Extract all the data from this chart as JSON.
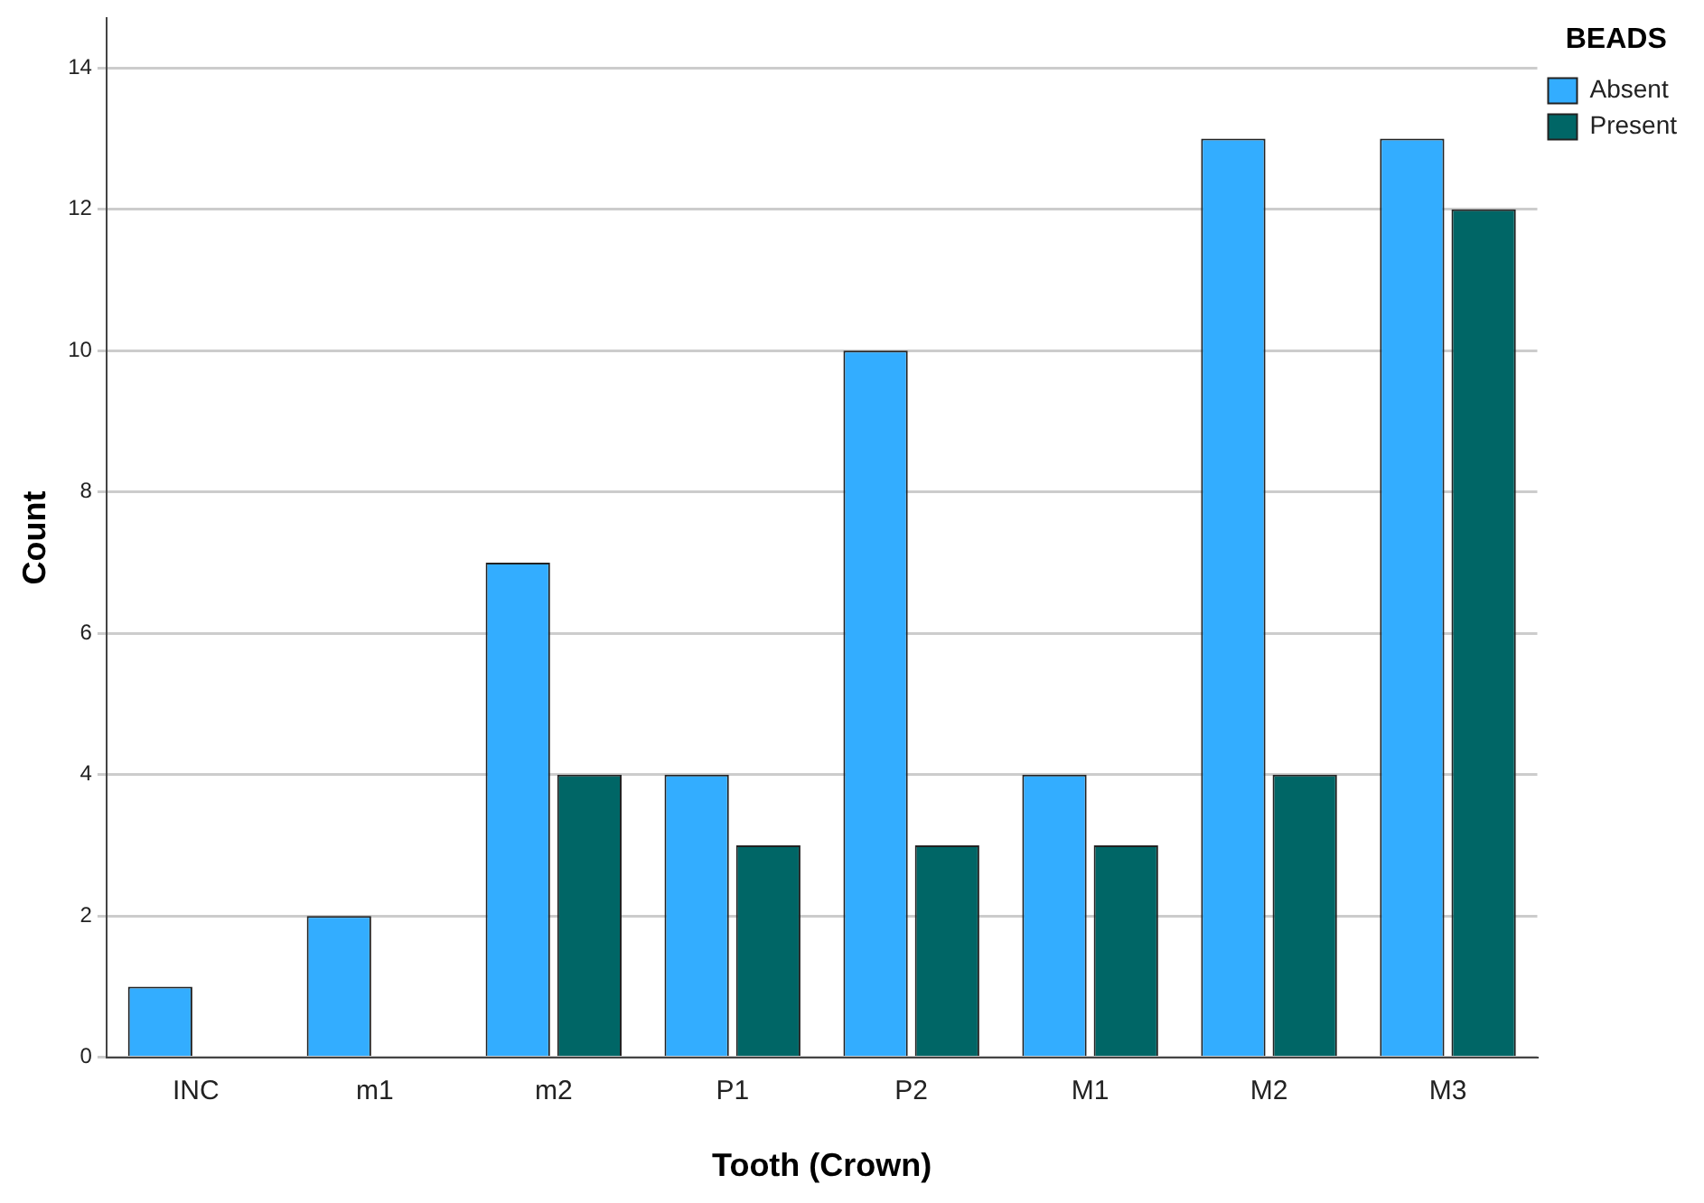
{
  "chart_data": {
    "type": "bar",
    "xlabel": "Tooth (Crown)",
    "ylabel": "Count",
    "legend_title": "BEADS",
    "categories": [
      "INC",
      "m1",
      "m2",
      "P1",
      "P2",
      "M1",
      "M2",
      "M3"
    ],
    "series": [
      {
        "name": "Absent",
        "color": "#33adff",
        "values": [
          1,
          2,
          7,
          4,
          10,
          4,
          13,
          13
        ]
      },
      {
        "name": "Present",
        "color": "#006666",
        "values": [
          0,
          0,
          4,
          3,
          3,
          3,
          4,
          12
        ]
      }
    ],
    "ylim": [
      0,
      14.7
    ],
    "yticks": [
      0,
      2,
      4,
      6,
      8,
      10,
      12,
      14
    ],
    "grid": "y",
    "legend": "top right"
  }
}
